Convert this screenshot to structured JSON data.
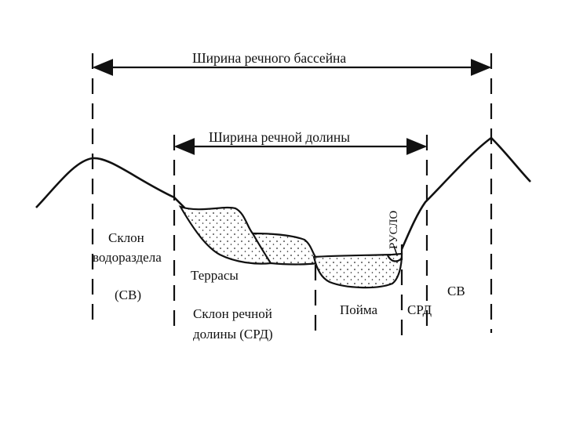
{
  "labels": {
    "basin_width": "Ширина речного бассейна",
    "valley_width": "Ширина речной долины",
    "riverbed": "РУСЛО",
    "slope_line1": "Склон",
    "slope_line2": "водораздела",
    "sv_left": "(СВ)",
    "terraces": "Террасы",
    "valley_slope_line1": "Склон речной",
    "valley_slope_line2": "долины   (СРД)",
    "floodplain": "Пойма",
    "srd_right": "СРД",
    "sv_right": "СВ"
  }
}
